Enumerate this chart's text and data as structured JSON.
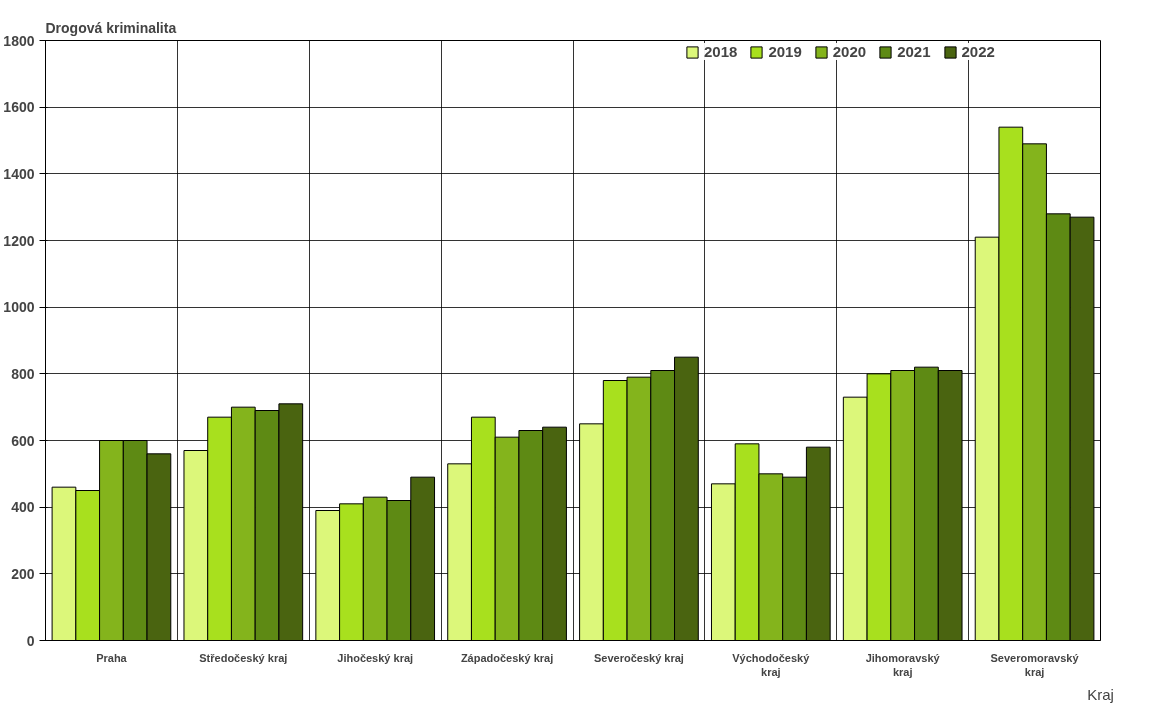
{
  "chart_data": {
    "type": "bar",
    "title": "Drogová kriminalita",
    "xlabel": "Kraj",
    "categories": [
      "Praha",
      "Středočeský kraj",
      "Jihočeský kraj",
      "Západočeský kraj",
      "Severočeský kraj",
      "Východočeský kraj",
      "Jihomoravský kraj",
      "Severomoravský kraj"
    ],
    "series": [
      {
        "name": "2018",
        "color": "#dcf77a",
        "values": [
          460,
          570,
          390,
          530,
          650,
          470,
          730,
          1210
        ]
      },
      {
        "name": "2019",
        "color": "#a8e01e",
        "values": [
          450,
          670,
          410,
          670,
          780,
          590,
          800,
          1540
        ]
      },
      {
        "name": "2020",
        "color": "#84b41c",
        "values": [
          600,
          700,
          430,
          610,
          790,
          500,
          810,
          1490
        ]
      },
      {
        "name": "2021",
        "color": "#5e8a14",
        "values": [
          600,
          690,
          420,
          630,
          810,
          490,
          820,
          1280
        ]
      },
      {
        "name": "2022",
        "color": "#4a6410",
        "values": [
          560,
          710,
          490,
          640,
          850,
          580,
          810,
          1270
        ]
      }
    ],
    "ylim": [
      0,
      1800
    ],
    "yticks": [
      0,
      200,
      400,
      600,
      800,
      1000,
      1200,
      1400,
      1600,
      1800
    ],
    "grid": true,
    "legend": "top right"
  }
}
